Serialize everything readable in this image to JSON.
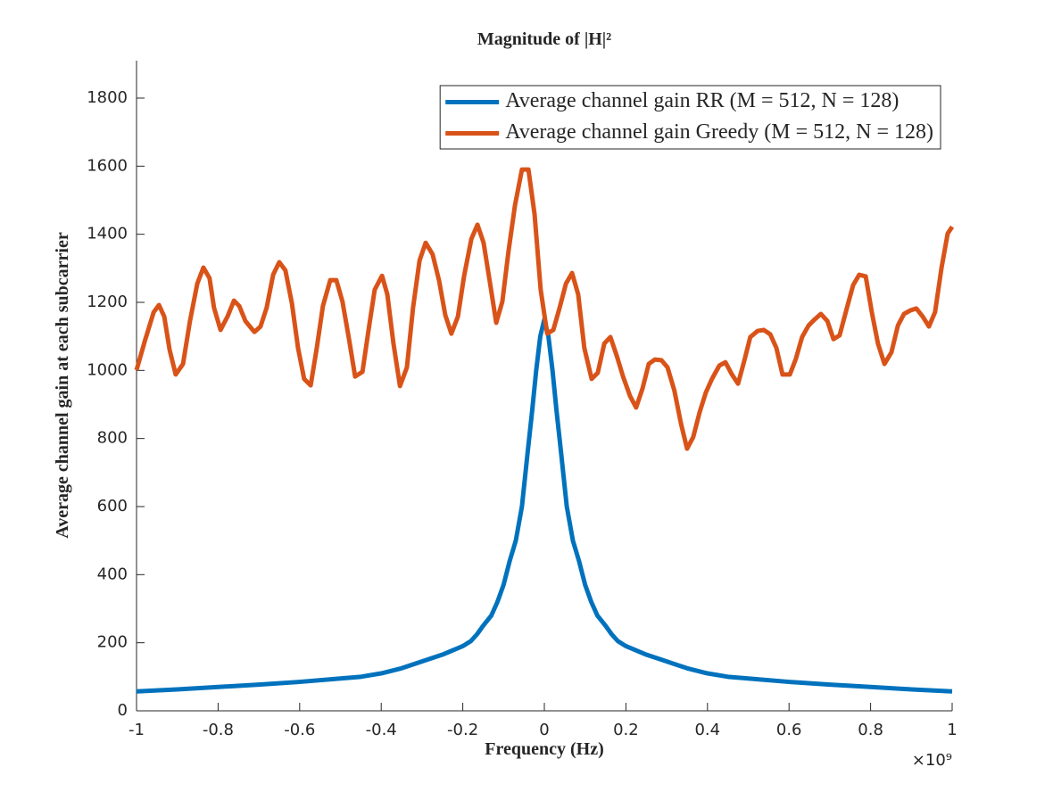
{
  "chart_data": {
    "type": "line",
    "title": "Magnitude of |H|²",
    "xlabel": "Frequency (Hz)",
    "ylabel": "Average channel gain at each subcarrier",
    "x_multiplier": "×10⁹",
    "xlim": [
      -1,
      1
    ],
    "ylim": [
      0,
      1910
    ],
    "xticks": [
      -1,
      -0.8,
      -0.6,
      -0.4,
      -0.2,
      0,
      0.2,
      0.4,
      0.6,
      0.8,
      1
    ],
    "yticks": [
      0,
      200,
      400,
      600,
      800,
      1000,
      1200,
      1400,
      1600,
      1800
    ],
    "legend": "northeast",
    "series": [
      {
        "name": "Average channel gain RR (M = 512, N = 128)",
        "color": "#0072BD",
        "x": [
          -1,
          -0.9,
          -0.8,
          -0.7,
          -0.6,
          -0.5,
          -0.45,
          -0.4,
          -0.35,
          -0.3,
          -0.25,
          -0.2,
          -0.18,
          -0.165,
          -0.15,
          -0.13,
          -0.115,
          -0.1,
          -0.085,
          -0.07,
          -0.055,
          -0.04,
          -0.03,
          -0.02,
          -0.01,
          0,
          0.01,
          0.02,
          0.03,
          0.04,
          0.055,
          0.07,
          0.085,
          0.1,
          0.115,
          0.13,
          0.15,
          0.165,
          0.18,
          0.2,
          0.25,
          0.3,
          0.35,
          0.4,
          0.45,
          0.5,
          0.6,
          0.7,
          0.8,
          0.9,
          1
        ],
        "values": [
          57,
          63,
          70,
          77,
          85,
          95,
          100,
          110,
          125,
          145,
          165,
          190,
          205,
          225,
          250,
          280,
          320,
          370,
          440,
          500,
          600,
          770,
          880,
          1000,
          1100,
          1150,
          1100,
          1000,
          880,
          770,
          600,
          500,
          440,
          370,
          320,
          280,
          250,
          225,
          205,
          190,
          165,
          145,
          125,
          110,
          100,
          95,
          85,
          77,
          70,
          63,
          57
        ]
      },
      {
        "name": "Average channel gain Greedy (M = 512, N = 128)",
        "color": "#D95319",
        "x": [
          -1,
          -0.98,
          -0.958,
          -0.945,
          -0.932,
          -0.919,
          -0.904,
          -0.886,
          -0.869,
          -0.851,
          -0.836,
          -0.821,
          -0.81,
          -0.794,
          -0.777,
          -0.761,
          -0.748,
          -0.733,
          -0.711,
          -0.696,
          -0.681,
          -0.665,
          -0.65,
          -0.635,
          -0.619,
          -0.604,
          -0.589,
          -0.573,
          -0.558,
          -0.543,
          -0.525,
          -0.51,
          -0.495,
          -0.479,
          -0.464,
          -0.446,
          -0.431,
          -0.416,
          -0.398,
          -0.385,
          -0.37,
          -0.354,
          -0.337,
          -0.322,
          -0.306,
          -0.291,
          -0.274,
          -0.258,
          -0.243,
          -0.228,
          -0.212,
          -0.197,
          -0.179,
          -0.164,
          -0.149,
          -0.133,
          -0.118,
          -0.103,
          -0.088,
          -0.072,
          -0.055,
          -0.039,
          -0.024,
          -0.009,
          0.007,
          0.022,
          0.037,
          0.053,
          0.068,
          0.083,
          0.098,
          0.116,
          0.131,
          0.147,
          0.162,
          0.177,
          0.193,
          0.21,
          0.225,
          0.241,
          0.256,
          0.271,
          0.287,
          0.302,
          0.319,
          0.335,
          0.35,
          0.365,
          0.381,
          0.396,
          0.411,
          0.429,
          0.444,
          0.46,
          0.475,
          0.49,
          0.505,
          0.523,
          0.538,
          0.554,
          0.569,
          0.584,
          0.602,
          0.617,
          0.632,
          0.648,
          0.663,
          0.678,
          0.694,
          0.709,
          0.724,
          0.742,
          0.757,
          0.772,
          0.788,
          0.803,
          0.818,
          0.834,
          0.851,
          0.867,
          0.882,
          0.897,
          0.912,
          0.928,
          0.943,
          0.958,
          0.974,
          0.989,
          1
        ],
        "values": [
          1001,
          1085,
          1171,
          1192,
          1158,
          1061,
          988,
          1019,
          1145,
          1255,
          1302,
          1271,
          1184,
          1119,
          1158,
          1205,
          1189,
          1145,
          1113,
          1129,
          1184,
          1281,
          1318,
          1294,
          1197,
          1066,
          975,
          956,
          1066,
          1189,
          1265,
          1265,
          1202,
          1092,
          982,
          996,
          1119,
          1237,
          1278,
          1223,
          1079,
          954,
          1009,
          1184,
          1323,
          1375,
          1341,
          1263,
          1163,
          1108,
          1158,
          1276,
          1386,
          1428,
          1375,
          1255,
          1140,
          1202,
          1349,
          1485,
          1590,
          1590,
          1459,
          1237,
          1108,
          1119,
          1182,
          1255,
          1286,
          1223,
          1066,
          975,
          993,
          1079,
          1098,
          1045,
          982,
          925,
          891,
          948,
          1019,
          1032,
          1030,
          1009,
          940,
          844,
          770,
          804,
          878,
          935,
          975,
          1014,
          1024,
          988,
          961,
          1027,
          1098,
          1116,
          1119,
          1106,
          1066,
          988,
          988,
          1035,
          1098,
          1132,
          1150,
          1166,
          1145,
          1092,
          1103,
          1184,
          1250,
          1281,
          1276,
          1171,
          1079,
          1019,
          1053,
          1132,
          1166,
          1176,
          1182,
          1158,
          1129,
          1171,
          1302,
          1402,
          1422
        ]
      }
    ]
  }
}
